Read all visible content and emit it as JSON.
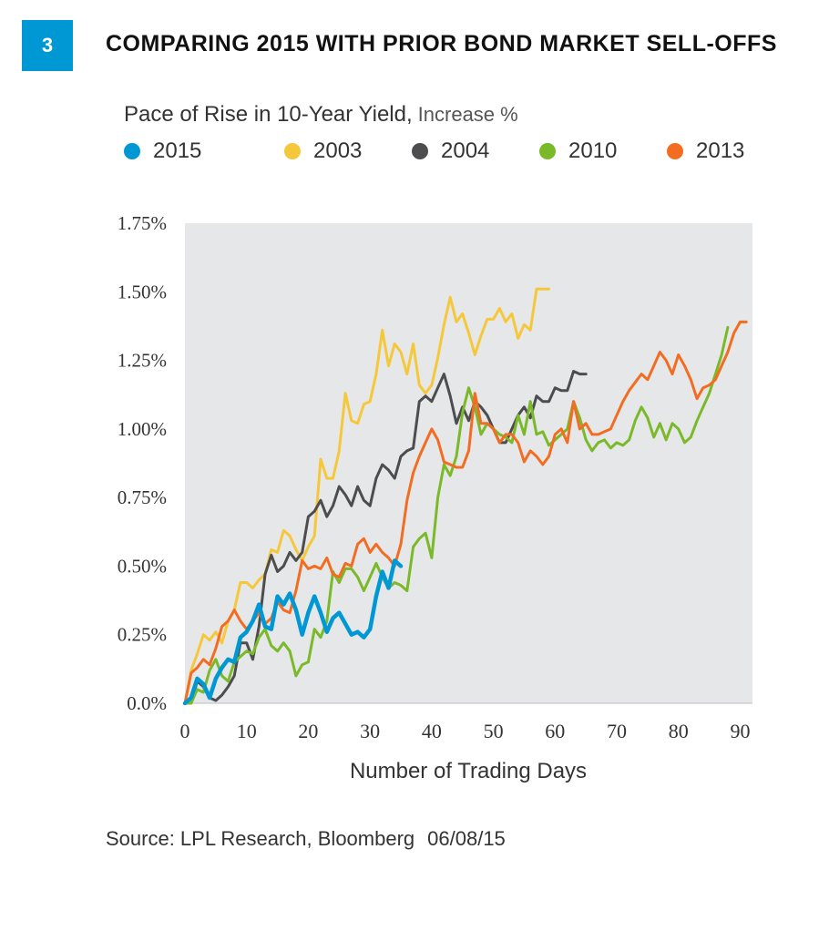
{
  "header": {
    "figure_number": "3",
    "title": "COMPARING 2015 WITH PRIOR BOND MARKET SELL-OFFS"
  },
  "chart_data": {
    "type": "line",
    "title": "Pace of Rise in 10-Year Yield",
    "title_unit": "Increase %",
    "xlabel": "Number of Trading Days",
    "ylabel": "",
    "xlim": [
      0,
      92
    ],
    "ylim": [
      0,
      1.75
    ],
    "xticks": [
      0,
      10,
      20,
      30,
      40,
      50,
      60,
      70,
      80,
      90
    ],
    "xtick_labels": [
      "0",
      "10",
      "20",
      "30",
      "40",
      "50",
      "60",
      "70",
      "80",
      "90"
    ],
    "yticks": [
      0,
      0.25,
      0.5,
      0.75,
      1.0,
      1.25,
      1.5,
      1.75
    ],
    "ytick_labels": [
      "0.0%",
      "0.25%",
      "0.50%",
      "0.75%",
      "1.00%",
      "1.25%",
      "1.50%",
      "1.75%"
    ],
    "grid": false,
    "legend_position": "top",
    "plot_background": "#e6e7e8",
    "series": [
      {
        "name": "2003",
        "color": "#f5c83c",
        "x": [
          0,
          1,
          2,
          3,
          4,
          5,
          6,
          7,
          8,
          9,
          10,
          11,
          12,
          13,
          14,
          15,
          16,
          17,
          18,
          19,
          20,
          21,
          22,
          23,
          24,
          25,
          26,
          27,
          28,
          29,
          30,
          31,
          32,
          33,
          34,
          35,
          36,
          37,
          38,
          39,
          40,
          41,
          42,
          43,
          44,
          45,
          46,
          47,
          48,
          49,
          50,
          51,
          52,
          53,
          54,
          55,
          56,
          57,
          58,
          59
        ],
        "values": [
          0.0,
          0.12,
          0.18,
          0.25,
          0.23,
          0.26,
          0.22,
          0.3,
          0.34,
          0.44,
          0.44,
          0.42,
          0.45,
          0.47,
          0.56,
          0.55,
          0.63,
          0.61,
          0.56,
          0.52,
          0.57,
          0.61,
          0.89,
          0.82,
          0.82,
          0.92,
          1.13,
          1.03,
          1.02,
          1.09,
          1.1,
          1.2,
          1.36,
          1.23,
          1.31,
          1.28,
          1.2,
          1.31,
          1.16,
          1.13,
          1.16,
          1.26,
          1.38,
          1.48,
          1.39,
          1.42,
          1.35,
          1.27,
          1.34,
          1.4,
          1.4,
          1.44,
          1.39,
          1.42,
          1.33,
          1.38,
          1.36,
          1.51,
          1.51,
          1.51
        ]
      },
      {
        "name": "2004",
        "color": "#4d4d4f",
        "x": [
          0,
          1,
          2,
          3,
          4,
          5,
          6,
          7,
          8,
          9,
          10,
          11,
          12,
          13,
          14,
          15,
          16,
          17,
          18,
          19,
          20,
          21,
          22,
          23,
          24,
          25,
          26,
          27,
          28,
          29,
          30,
          31,
          32,
          33,
          34,
          35,
          36,
          37,
          38,
          39,
          40,
          41,
          42,
          43,
          44,
          45,
          46,
          47,
          48,
          49,
          50,
          51,
          52,
          53,
          54,
          55,
          56,
          57,
          58,
          59,
          60,
          61,
          62,
          63,
          64,
          65
        ],
        "values": [
          0.0,
          0.0,
          0.08,
          0.06,
          0.02,
          0.01,
          0.03,
          0.06,
          0.1,
          0.22,
          0.22,
          0.16,
          0.28,
          0.47,
          0.54,
          0.48,
          0.5,
          0.55,
          0.52,
          0.55,
          0.68,
          0.7,
          0.74,
          0.68,
          0.72,
          0.79,
          0.76,
          0.72,
          0.79,
          0.74,
          0.72,
          0.82,
          0.87,
          0.85,
          0.82,
          0.9,
          0.92,
          0.93,
          1.1,
          1.12,
          1.1,
          1.15,
          1.2,
          1.12,
          1.02,
          1.08,
          1.03,
          1.1,
          1.08,
          1.05,
          1.0,
          0.95,
          0.95,
          1.0,
          1.05,
          1.08,
          1.04,
          1.12,
          1.1,
          1.1,
          1.15,
          1.14,
          1.14,
          1.21,
          1.2,
          1.2
        ]
      },
      {
        "name": "2010",
        "color": "#7ab929",
        "x": [
          0,
          1,
          2,
          3,
          4,
          5,
          6,
          7,
          8,
          9,
          10,
          11,
          12,
          13,
          14,
          15,
          16,
          17,
          18,
          19,
          20,
          21,
          22,
          23,
          24,
          25,
          26,
          27,
          28,
          29,
          30,
          31,
          32,
          33,
          34,
          35,
          36,
          37,
          38,
          39,
          40,
          41,
          42,
          43,
          44,
          45,
          46,
          47,
          48,
          49,
          50,
          51,
          52,
          53,
          54,
          55,
          56,
          57,
          58,
          59,
          60,
          61,
          62,
          63,
          64,
          65,
          66,
          67,
          68,
          69,
          70,
          71,
          72,
          73,
          74,
          75,
          76,
          77,
          78,
          79,
          80,
          81,
          82,
          83,
          84,
          85,
          86,
          87,
          88
        ],
        "values": [
          0.0,
          0.0,
          0.05,
          0.04,
          0.12,
          0.16,
          0.1,
          0.08,
          0.15,
          0.17,
          0.19,
          0.18,
          0.24,
          0.27,
          0.21,
          0.19,
          0.22,
          0.19,
          0.1,
          0.14,
          0.15,
          0.27,
          0.24,
          0.3,
          0.48,
          0.44,
          0.49,
          0.49,
          0.46,
          0.41,
          0.46,
          0.51,
          0.46,
          0.42,
          0.44,
          0.43,
          0.41,
          0.57,
          0.6,
          0.62,
          0.53,
          0.75,
          0.87,
          0.83,
          0.9,
          1.06,
          1.15,
          1.08,
          0.98,
          1.02,
          1.0,
          0.98,
          0.97,
          0.95,
          1.05,
          0.98,
          1.1,
          0.98,
          0.99,
          0.94,
          0.96,
          0.98,
          1.0,
          1.1,
          1.04,
          0.96,
          0.92,
          0.95,
          0.96,
          0.93,
          0.95,
          0.94,
          0.96,
          1.03,
          1.08,
          1.04,
          0.97,
          1.02,
          0.96,
          1.02,
          1.0,
          0.95,
          0.97,
          1.03,
          1.08,
          1.13,
          1.2,
          1.27,
          1.37
        ]
      },
      {
        "name": "2013",
        "color": "#f26d21",
        "x": [
          0,
          1,
          2,
          3,
          4,
          5,
          6,
          7,
          8,
          9,
          10,
          11,
          12,
          13,
          14,
          15,
          16,
          17,
          18,
          19,
          20,
          21,
          22,
          23,
          24,
          25,
          26,
          27,
          28,
          29,
          30,
          31,
          32,
          33,
          34,
          35,
          36,
          37,
          38,
          39,
          40,
          41,
          42,
          43,
          44,
          45,
          46,
          47,
          48,
          49,
          50,
          51,
          52,
          53,
          54,
          55,
          56,
          57,
          58,
          59,
          60,
          61,
          62,
          63,
          64,
          65,
          66,
          67,
          68,
          69,
          70,
          71,
          72,
          73,
          74,
          75,
          76,
          77,
          78,
          79,
          80,
          81,
          82,
          83,
          84,
          85,
          86,
          87,
          88,
          89,
          90,
          91
        ],
        "values": [
          0.0,
          0.11,
          0.13,
          0.16,
          0.14,
          0.2,
          0.28,
          0.3,
          0.34,
          0.3,
          0.27,
          0.3,
          0.33,
          0.29,
          0.31,
          0.37,
          0.34,
          0.33,
          0.41,
          0.52,
          0.49,
          0.5,
          0.49,
          0.53,
          0.47,
          0.46,
          0.51,
          0.5,
          0.58,
          0.6,
          0.55,
          0.58,
          0.55,
          0.53,
          0.5,
          0.58,
          0.74,
          0.84,
          0.9,
          0.95,
          1.0,
          0.96,
          0.88,
          0.87,
          0.86,
          0.86,
          0.92,
          1.13,
          1.02,
          1.02,
          1.0,
          0.95,
          0.98,
          0.98,
          0.95,
          0.88,
          0.92,
          0.9,
          0.87,
          0.9,
          0.98,
          1.0,
          0.95,
          1.1,
          1.0,
          1.02,
          0.98,
          0.98,
          0.99,
          1.0,
          1.05,
          1.1,
          1.14,
          1.17,
          1.2,
          1.18,
          1.23,
          1.28,
          1.25,
          1.2,
          1.27,
          1.23,
          1.18,
          1.11,
          1.15,
          1.16,
          1.18,
          1.23,
          1.28,
          1.35,
          1.39,
          1.39
        ]
      },
      {
        "name": "2015",
        "color": "#0098d4",
        "x": [
          0,
          1,
          2,
          3,
          4,
          5,
          6,
          7,
          8,
          9,
          10,
          11,
          12,
          13,
          14,
          15,
          16,
          17,
          18,
          19,
          20,
          21,
          22,
          23,
          24,
          25,
          26,
          27,
          28,
          29,
          30,
          31,
          32,
          33,
          34,
          35
        ],
        "values": [
          0.0,
          0.02,
          0.09,
          0.07,
          0.02,
          0.09,
          0.13,
          0.16,
          0.15,
          0.24,
          0.26,
          0.3,
          0.36,
          0.28,
          0.27,
          0.39,
          0.36,
          0.4,
          0.34,
          0.25,
          0.33,
          0.39,
          0.33,
          0.26,
          0.31,
          0.33,
          0.29,
          0.25,
          0.26,
          0.24,
          0.27,
          0.39,
          0.48,
          0.42,
          0.52,
          0.5
        ]
      }
    ]
  },
  "legend": {
    "items": [
      {
        "label": "2015",
        "color": "#0098d4"
      },
      {
        "label": "2003",
        "color": "#f5c83c"
      },
      {
        "label": "2004",
        "color": "#4d4d4f"
      },
      {
        "label": "2010",
        "color": "#7ab929"
      },
      {
        "label": "2013",
        "color": "#f26d21"
      }
    ]
  },
  "footer": {
    "source": "Source: LPL Research, Bloomberg",
    "date": "06/08/15"
  }
}
